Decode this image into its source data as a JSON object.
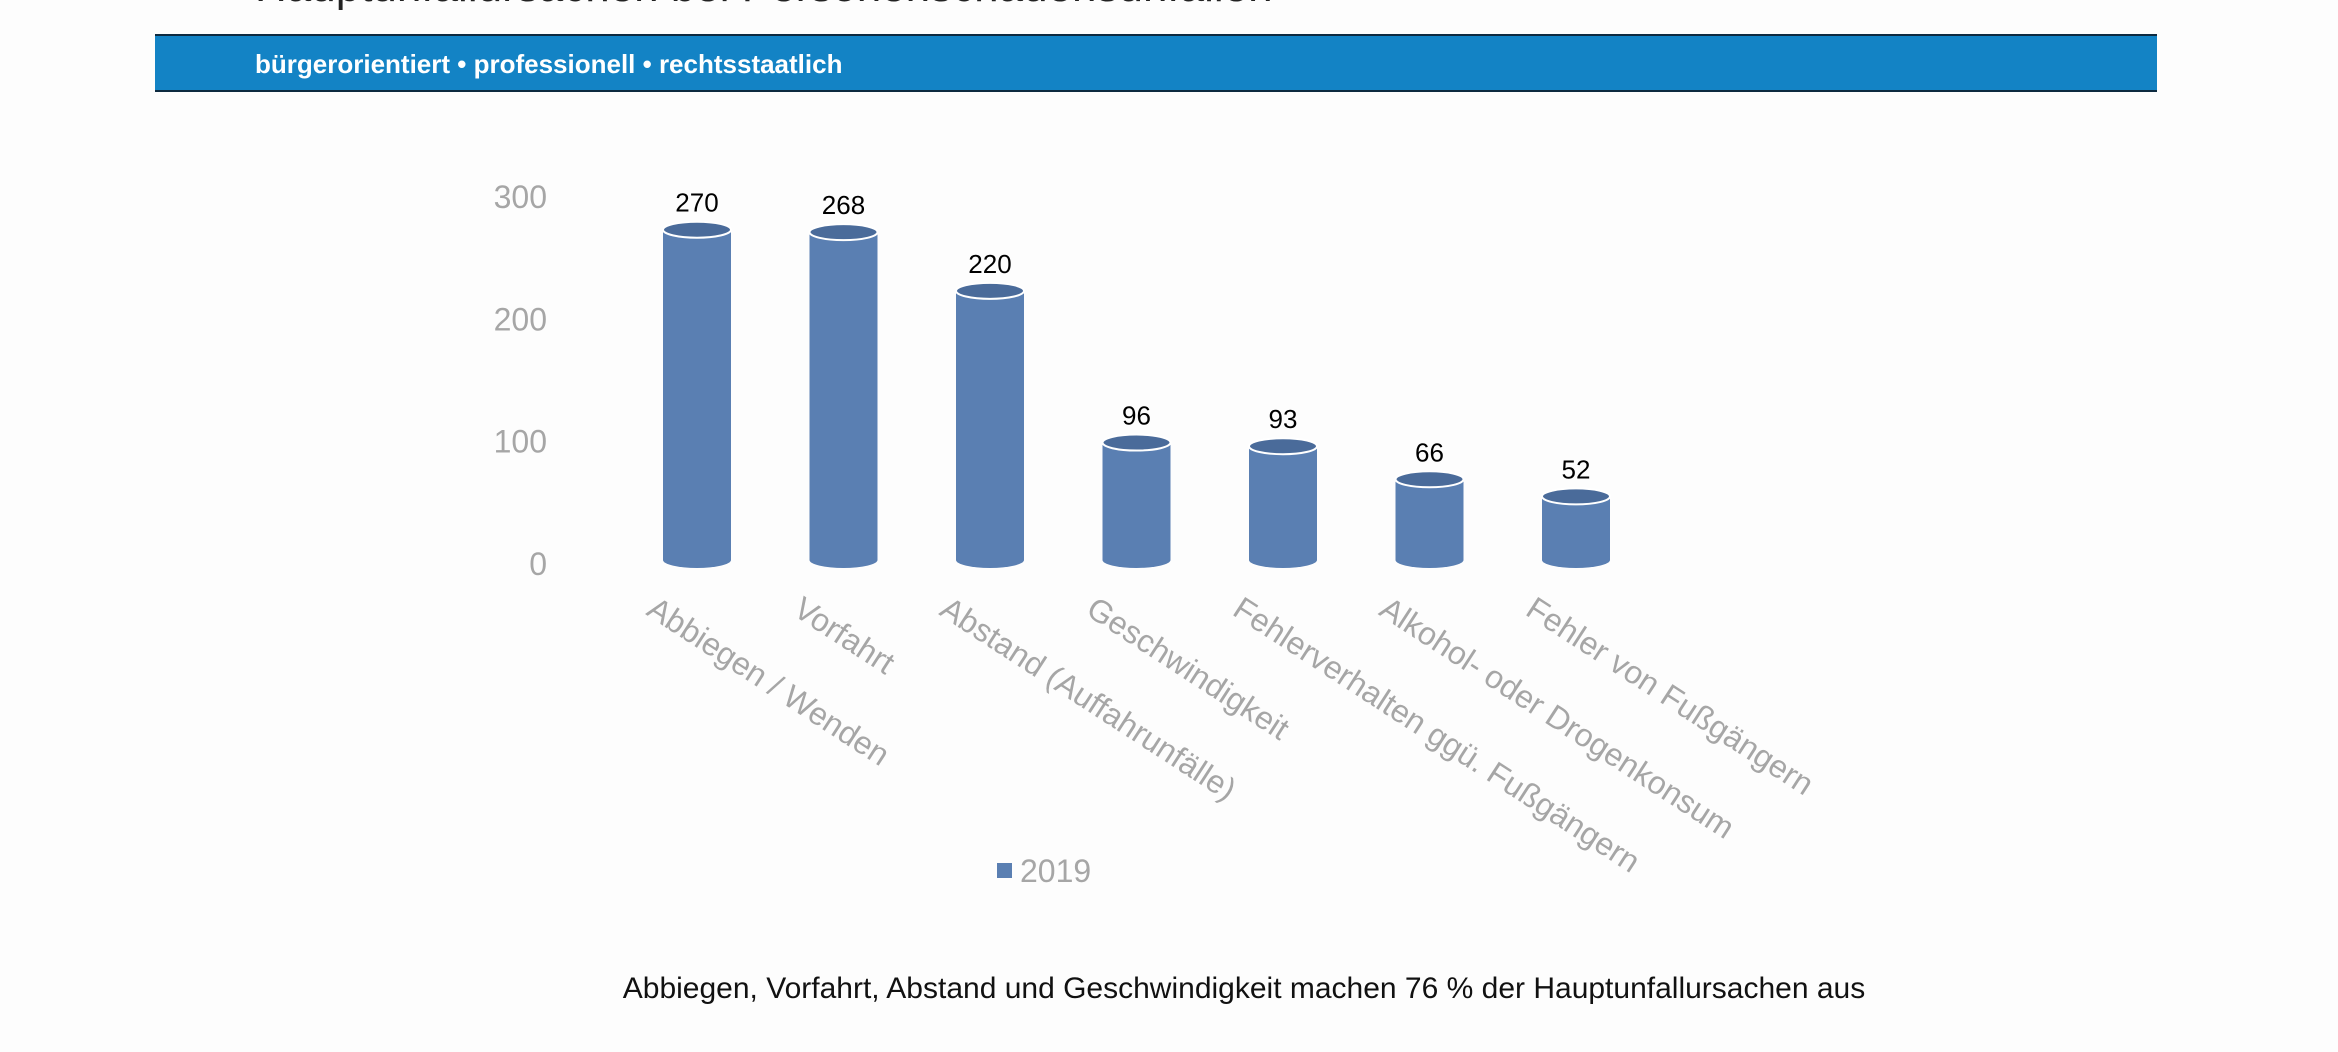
{
  "header": {
    "title": "Hauptunfallursachen bei Personenschadensunfällen",
    "slogan": "bürgerorientiert • professionell • rechtsstaatlich"
  },
  "chart_data": {
    "type": "bar",
    "categories": [
      "Abbiegen / Wenden",
      "Vorfahrt",
      "Abstand (Auffahrunfälle)",
      "Geschwindigkeit",
      "Fehlerverhalten ggü. Fußgängern",
      "Alkohol- oder Drogenkonsum",
      "Fehler von Fußgängern"
    ],
    "series": [
      {
        "name": "2019",
        "values": [
          270,
          268,
          220,
          96,
          93,
          66,
          52
        ]
      }
    ],
    "title": "",
    "xlabel": "",
    "ylabel": "",
    "ylim": [
      0,
      300
    ],
    "yticks": [
      0,
      100,
      200,
      300
    ],
    "grid": false,
    "legend_position": "bottom",
    "bar_style": "cylinder",
    "colors": {
      "bar": "#5a7fb2",
      "bar_dark": "#4a6b9a",
      "tick": "#a6a6a6",
      "value_label": "#000000"
    }
  },
  "caption": "Abbiegen, Vorfahrt, Abstand und Geschwindigkeit machen 76 % der Hauptunfallursachen aus"
}
